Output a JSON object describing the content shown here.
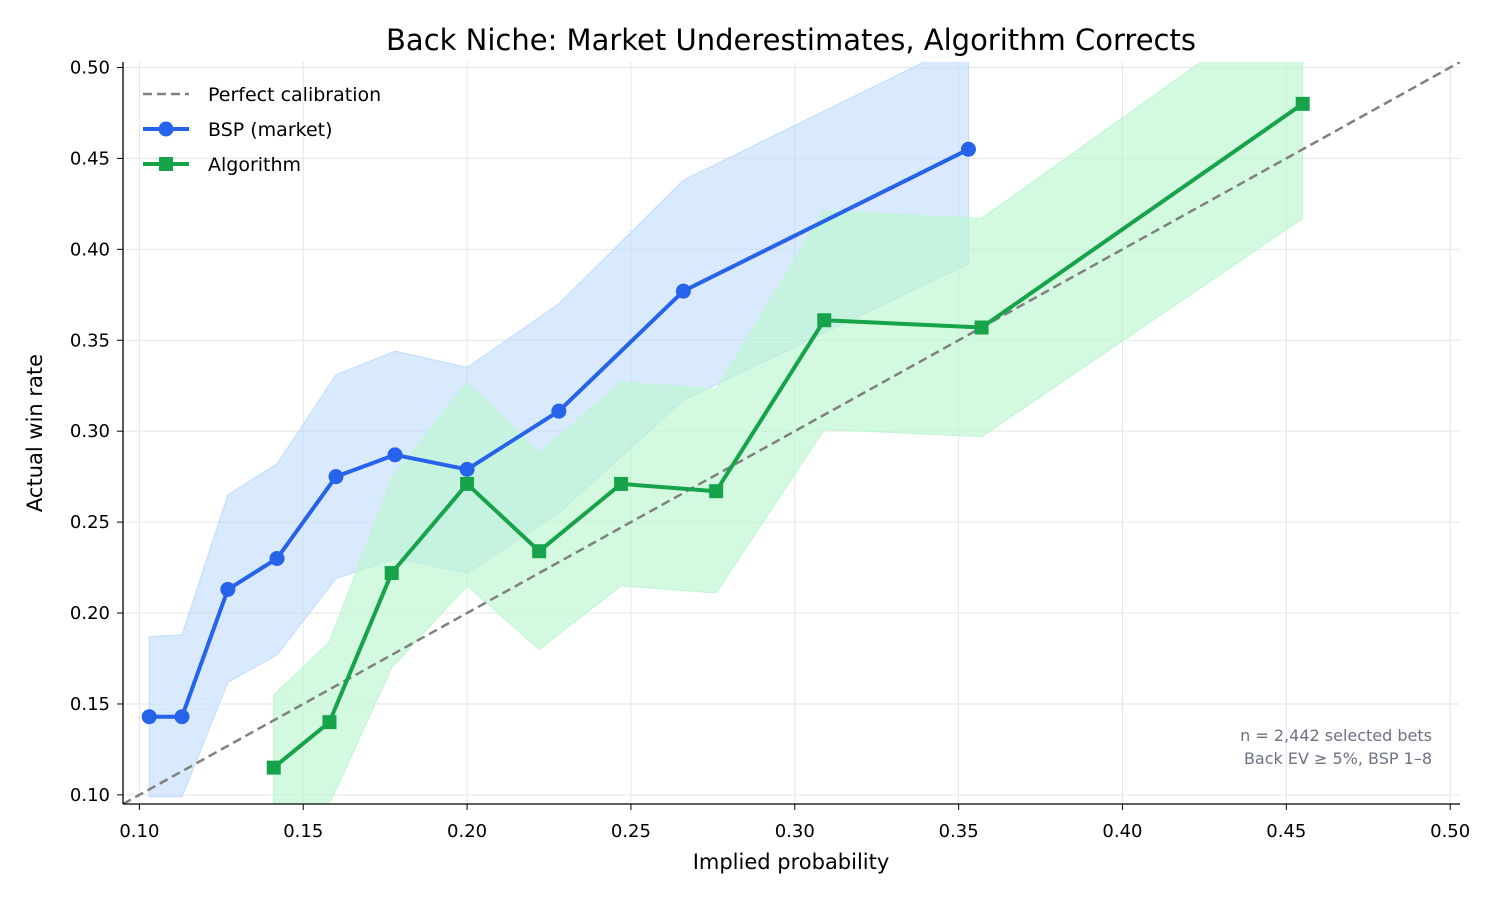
{
  "chart_data": {
    "type": "line",
    "title": "Back Niche: Market Underestimates, Algorithm Corrects",
    "xlabel": "Implied probability",
    "ylabel": "Actual win rate",
    "xlim": [
      0.095,
      0.503
    ],
    "ylim": [
      0.095,
      0.503
    ],
    "xticks": [
      "0.10",
      "0.15",
      "0.20",
      "0.25",
      "0.30",
      "0.35",
      "0.40",
      "0.45",
      "0.50"
    ],
    "yticks": [
      "0.10",
      "0.15",
      "0.20",
      "0.25",
      "0.30",
      "0.35",
      "0.40",
      "0.45",
      "0.50"
    ],
    "grid": true,
    "legend_position": "top-left",
    "reference_line": {
      "name": "Perfect calibration",
      "x": [
        0.095,
        0.503
      ],
      "y": [
        0.095,
        0.503
      ],
      "color": "#808080",
      "style": "dashed"
    },
    "series": [
      {
        "name": "BSP (market)",
        "color": "#2563eb",
        "band_color": "#bfdbfe",
        "marker": "circle",
        "x": [
          0.103,
          0.113,
          0.127,
          0.142,
          0.16,
          0.178,
          0.2,
          0.228,
          0.266,
          0.353
        ],
        "y": [
          0.143,
          0.143,
          0.213,
          0.23,
          0.275,
          0.287,
          0.279,
          0.311,
          0.377,
          0.455
        ],
        "lower": [
          0.099,
          0.099,
          0.162,
          0.177,
          0.219,
          0.23,
          0.222,
          0.255,
          0.317,
          0.392
        ],
        "upper": [
          0.187,
          0.188,
          0.265,
          0.282,
          0.331,
          0.344,
          0.335,
          0.37,
          0.438,
          0.515
        ]
      },
      {
        "name": "Algorithm",
        "color": "#16a34a",
        "band_color": "#bbf7d0",
        "marker": "square",
        "x": [
          0.141,
          0.158,
          0.177,
          0.2,
          0.222,
          0.247,
          0.276,
          0.309,
          0.357,
          0.455
        ],
        "y": [
          0.115,
          0.14,
          0.222,
          0.271,
          0.234,
          0.271,
          0.267,
          0.361,
          0.357,
          0.48
        ],
        "lower": [
          0.076,
          0.095,
          0.17,
          0.215,
          0.18,
          0.215,
          0.211,
          0.301,
          0.297,
          0.417
        ],
        "upper": [
          0.155,
          0.184,
          0.274,
          0.327,
          0.288,
          0.327,
          0.323,
          0.421,
          0.417,
          0.543
        ]
      }
    ],
    "annotation": [
      "n = 2,442 selected bets",
      "Back EV ≥ 5%, BSP 1–8"
    ]
  }
}
